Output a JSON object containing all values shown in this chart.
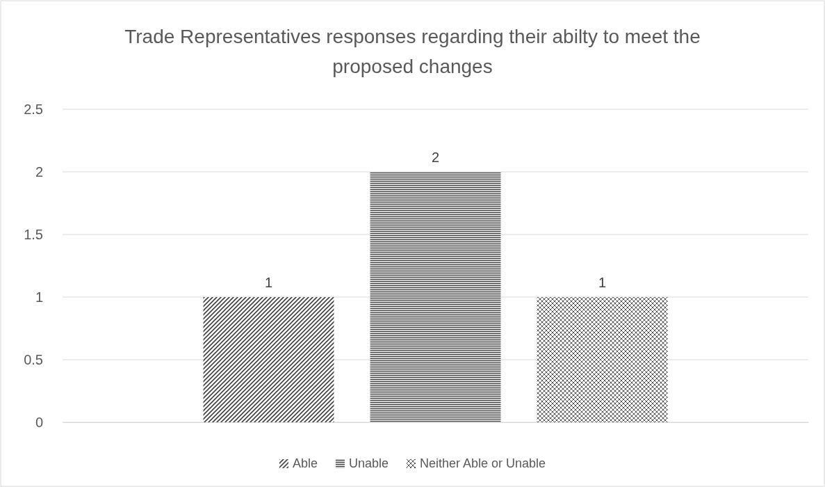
{
  "chart_data": {
    "type": "bar",
    "title": "Trade Representatives responses regarding their abilty to meet the proposed changes",
    "categories": [
      null
    ],
    "series": [
      {
        "name": "Able",
        "color": "#404040",
        "values": [
          1
        ]
      },
      {
        "name": "Unable",
        "color": "#404040",
        "values": [
          2
        ]
      },
      {
        "name": "Neither Able or Unable",
        "color": "#404040",
        "values": [
          1
        ]
      }
    ],
    "ylim": [
      0,
      2.5
    ],
    "yticks": [
      0,
      0.5,
      1,
      1.5,
      2,
      2.5
    ],
    "grid": "y",
    "legend": "bottom",
    "data_labels": true
  }
}
